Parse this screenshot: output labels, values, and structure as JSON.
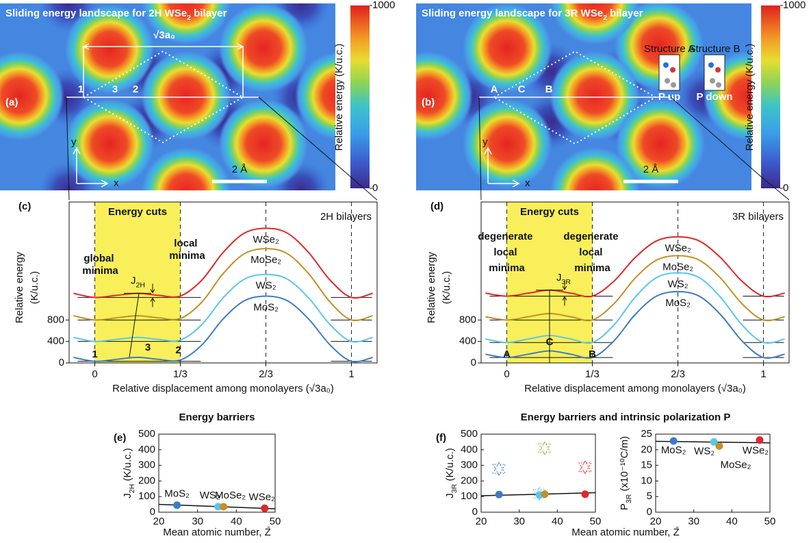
{
  "chart_data": [
    {
      "type": "heatmap",
      "panel": "(a)",
      "title": [
        "Sliding energy landscape for 2H WSe",
        "2",
        " bilayer"
      ],
      "clim": [
        0,
        1000
      ],
      "cticks": [
        0,
        1000
      ],
      "colorbar_label": "Relative energy (K/u.c.)",
      "annotations": {
        "period": "√3a₀",
        "sites": [
          "1",
          "3",
          "2"
        ],
        "scale": "2 Å",
        "x": "x",
        "y": "y"
      }
    },
    {
      "type": "heatmap",
      "panel": "(b)",
      "title": [
        "Sliding energy landscape for 3R WSe",
        "2",
        " bilayer"
      ],
      "clim": [
        0,
        1000
      ],
      "cticks": [
        0,
        1000
      ],
      "colorbar_label": "Relative energy (K/u.c.)",
      "annotations": {
        "sites": [
          "A",
          "C",
          "B"
        ],
        "scale": "2 Å",
        "x": "x",
        "y": "y",
        "structures": [
          {
            "name": "Structure A",
            "label": "P up"
          },
          {
            "name": "Structure B",
            "label": "P down"
          }
        ]
      }
    },
    {
      "type": "line",
      "panel": "(c)",
      "title": "Energy cuts",
      "subtitle": "2H bilayers",
      "xlabel": "Relative displacement among monolayers (√3a₀)",
      "ylabel": [
        "Relative energy",
        "(K/u.c.)"
      ],
      "xlim": [
        -0.1,
        1.1
      ],
      "xticks": [
        0,
        {
          "value": 0.3333,
          "label": "1/3"
        },
        {
          "value": 0.6667,
          "label": "2/3"
        },
        1
      ],
      "ylim": [
        0,
        3000
      ],
      "yticks": [
        0,
        400,
        800
      ],
      "x": [
        -0.083,
        0,
        0.083,
        0.167,
        0.25,
        0.333,
        0.417,
        0.5,
        0.583,
        0.667,
        0.75,
        0.833,
        0.917,
        1,
        1.083
      ],
      "series": [
        {
          "name": "WSe₂",
          "color": "#e3262a",
          "values": [
            1297,
            1220,
            1259,
            1297,
            1259,
            1246,
            1543,
            2059,
            2420,
            2510,
            2420,
            2059,
            1543,
            1220,
            1297
          ]
        },
        {
          "name": "MoSe₂",
          "color": "#c39024",
          "values": [
            880,
            800,
            840,
            880,
            840,
            827,
            1133,
            1665,
            2037,
            2130,
            2037,
            1665,
            1133,
            800,
            880
          ]
        },
        {
          "name": "WS₂",
          "color": "#5bc5ee",
          "values": [
            475,
            400,
            438,
            475,
            438,
            425,
            713,
            1213,
            1563,
            1650,
            1563,
            1213,
            713,
            400,
            475
          ]
        },
        {
          "name": "MoS₂",
          "color": "#3d7cc4",
          "values": [
            103,
            30,
            66,
            103,
            66,
            54,
            334,
            820,
            1160,
            1245,
            1160,
            820,
            334,
            30,
            103
          ]
        }
      ],
      "annotations": {
        "left": "global minima",
        "right": "local minima",
        "barrier": [
          "J",
          "2H"
        ],
        "sites": [
          "1",
          "3",
          "2"
        ]
      }
    },
    {
      "type": "line",
      "panel": "(d)",
      "title": "Energy cuts",
      "subtitle": "3R bilayers",
      "xlabel": "Relative displacement among monolayers (√3a₀)",
      "ylabel": [
        "Relative energy",
        "(K/u.c.)"
      ],
      "xlim": [
        -0.1,
        1.1
      ],
      "xticks": [
        0,
        {
          "value": 0.3333,
          "label": "1/3"
        },
        {
          "value": 0.6667,
          "label": "2/3"
        },
        1
      ],
      "ylim": [
        0,
        3000
      ],
      "yticks": [
        0,
        400,
        800
      ],
      "x": [
        -0.083,
        0,
        0.083,
        0.167,
        0.25,
        0.333,
        0.417,
        0.5,
        0.583,
        0.667,
        0.75,
        0.833,
        0.917,
        1,
        1.083
      ],
      "series": [
        {
          "name": "WSe₂",
          "color": "#e3262a",
          "values": [
            1300,
            1245,
            1300,
            1356,
            1300,
            1245,
            1521,
            1963,
            2273,
            2350,
            2273,
            1963,
            1521,
            1245,
            1300
          ]
        },
        {
          "name": "MoSe₂",
          "color": "#c39024",
          "values": [
            860,
            800,
            860,
            920,
            860,
            800,
            1100,
            1580,
            1916,
            2000,
            1916,
            1580,
            1100,
            800,
            860
          ]
        },
        {
          "name": "WS₂",
          "color": "#5bc5ee",
          "values": [
            445,
            380,
            445,
            510,
            445,
            380,
            705,
            1225,
            1589,
            1680,
            1589,
            1225,
            705,
            380,
            445
          ]
        },
        {
          "name": "MoS₂",
          "color": "#3d7cc4",
          "values": [
            162,
            100,
            162,
            223,
            162,
            100,
            408,
            900,
            1244,
            1330,
            1244,
            900,
            408,
            100,
            162
          ]
        }
      ],
      "annotations": {
        "left": "degenerate local minima",
        "right": "degenerate local minima",
        "barrier": [
          "J",
          "3R"
        ],
        "sites": [
          "A",
          "C",
          "B"
        ]
      }
    },
    {
      "type": "scatter",
      "panel": "(e)",
      "title": "Energy barriers",
      "xlabel": "Mean atomic number, Z̄",
      "ylabel": [
        "J",
        "2H",
        " (K/u.c.)"
      ],
      "xlim": [
        20,
        50
      ],
      "xticks": [
        20,
        30,
        40,
        50
      ],
      "ylim": [
        0,
        500
      ],
      "yticks": [
        0,
        100,
        200,
        300,
        400,
        500
      ],
      "series": [
        {
          "name": "MoS₂",
          "color": "#3d7cc4",
          "x": [
            24.7
          ],
          "values": [
            45
          ]
        },
        {
          "name": "WS₂",
          "color": "#5bc5ee",
          "x": [
            35.3
          ],
          "values": [
            35
          ]
        },
        {
          "name": "MoSe₂",
          "color": "#c39024",
          "x": [
            36.7
          ],
          "values": [
            35
          ]
        },
        {
          "name": "WSe₂",
          "color": "#e3262a",
          "x": [
            47.3
          ],
          "values": [
            25
          ]
        }
      ],
      "fit": {
        "x": [
          20,
          50
        ],
        "values": [
          50,
          22
        ]
      }
    },
    {
      "type": "scatter",
      "panel": "(f)",
      "title": "Energy barriers and intrinsic polarization P",
      "xlabel": "Mean atomic number, Z̄",
      "ylabel": [
        "J",
        "3R",
        " (K/u.c.)"
      ],
      "xlim": [
        20,
        50
      ],
      "xticks": [
        20,
        30,
        40,
        50
      ],
      "ylim": [
        0,
        500
      ],
      "yticks": [
        0,
        100,
        200,
        300,
        400,
        500
      ],
      "series": [
        {
          "name": "MoS₂",
          "color": "#3d7cc4",
          "x": [
            24.7
          ],
          "values": [
            113
          ],
          "alt_values": [
            280
          ]
        },
        {
          "name": "WS₂",
          "color": "#5bc5ee",
          "x": [
            35.3
          ],
          "values": [
            110
          ],
          "alt_values": [
            120
          ]
        },
        {
          "name": "MoSe₂",
          "color": "#c39024",
          "x": [
            36.7
          ],
          "values": [
            115
          ],
          "alt_values": [
            412
          ]
        },
        {
          "name": "WSe₂",
          "color": "#e3262a",
          "x": [
            47.3
          ],
          "values": [
            115
          ],
          "alt_values": [
            290
          ]
        }
      ],
      "fit": {
        "x": [
          20,
          50
        ],
        "values": [
          105,
          125
        ]
      }
    },
    {
      "type": "scatter",
      "ylabel": [
        "P",
        "3R",
        " (x10⁻¹⁰C/m)"
      ],
      "xlim": [
        20,
        50
      ],
      "xticks": [
        20,
        30,
        40,
        50
      ],
      "ylim": [
        0,
        25
      ],
      "yticks": [
        0,
        5,
        10,
        15,
        20,
        25
      ],
      "series": [
        {
          "name": "MoS₂",
          "color": "#3d7cc4",
          "x": [
            24.7
          ],
          "values": [
            22.8
          ]
        },
        {
          "name": "WS₂",
          "color": "#5bc5ee",
          "x": [
            35.3
          ],
          "values": [
            22.5
          ]
        },
        {
          "name": "MoSe₂",
          "color": "#c39024",
          "x": [
            36.7
          ],
          "values": [
            21.2
          ]
        },
        {
          "name": "WSe₂",
          "color": "#e3262a",
          "x": [
            47.3
          ],
          "values": [
            23.1
          ]
        }
      ],
      "fit": {
        "x": [
          20,
          50
        ],
        "values": [
          22.7,
          22.2
        ]
      }
    }
  ]
}
